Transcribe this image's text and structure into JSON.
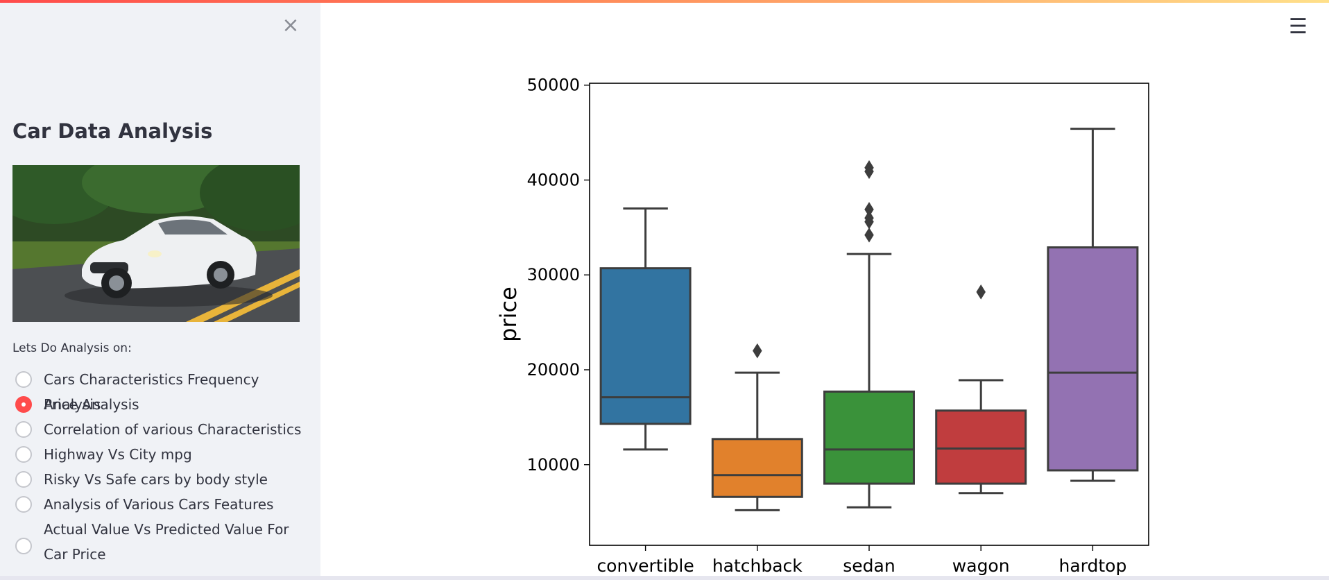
{
  "sidebar": {
    "close_icon": "close-icon",
    "title": "Car Data Analysis",
    "image_desc": "car-photo",
    "radio_label": "Lets Do Analysis on:",
    "options": [
      "Cars Characteristics Frequency Analysis",
      "Price Analysis",
      "Correlation of various Characteristics",
      "Highway Vs City mpg",
      "Risky Vs Safe cars by body style",
      "Analysis of Various Cars Features",
      "Actual Value Vs Predicted Value For Car Price"
    ],
    "selected_index": 1,
    "accent_color": "#ff4b4b"
  },
  "header": {
    "menu_icon": "hamburger-menu-icon"
  },
  "chart_data": {
    "type": "boxplot",
    "ylabel": "price",
    "xlabel": "",
    "ylim": [
      1500,
      50200
    ],
    "yticks": [
      10000,
      20000,
      30000,
      40000,
      50000
    ],
    "categories": [
      "convertible",
      "hatchback",
      "sedan",
      "wagon",
      "hardtop"
    ],
    "colors": [
      "#3274a1",
      "#e1812c",
      "#3a923a",
      "#c03d3e",
      "#9372b2"
    ],
    "boxes": [
      {
        "whislo": 11600,
        "q1": 14300,
        "med": 17100,
        "q3": 30700,
        "whishi": 37000,
        "fliers": []
      },
      {
        "whislo": 5200,
        "q1": 6600,
        "med": 8900,
        "q3": 12700,
        "whishi": 19700,
        "fliers": [
          22000
        ]
      },
      {
        "whislo": 5500,
        "q1": 8000,
        "med": 11600,
        "q3": 17700,
        "whishi": 32200,
        "fliers": [
          34200,
          35600,
          36000,
          36900,
          40900,
          41300
        ]
      },
      {
        "whislo": 7000,
        "q1": 8000,
        "med": 11700,
        "q3": 15700,
        "whishi": 18900,
        "fliers": [
          28200
        ]
      },
      {
        "whislo": 8300,
        "q1": 9400,
        "med": 19700,
        "q3": 32900,
        "whishi": 45400,
        "fliers": []
      }
    ]
  }
}
